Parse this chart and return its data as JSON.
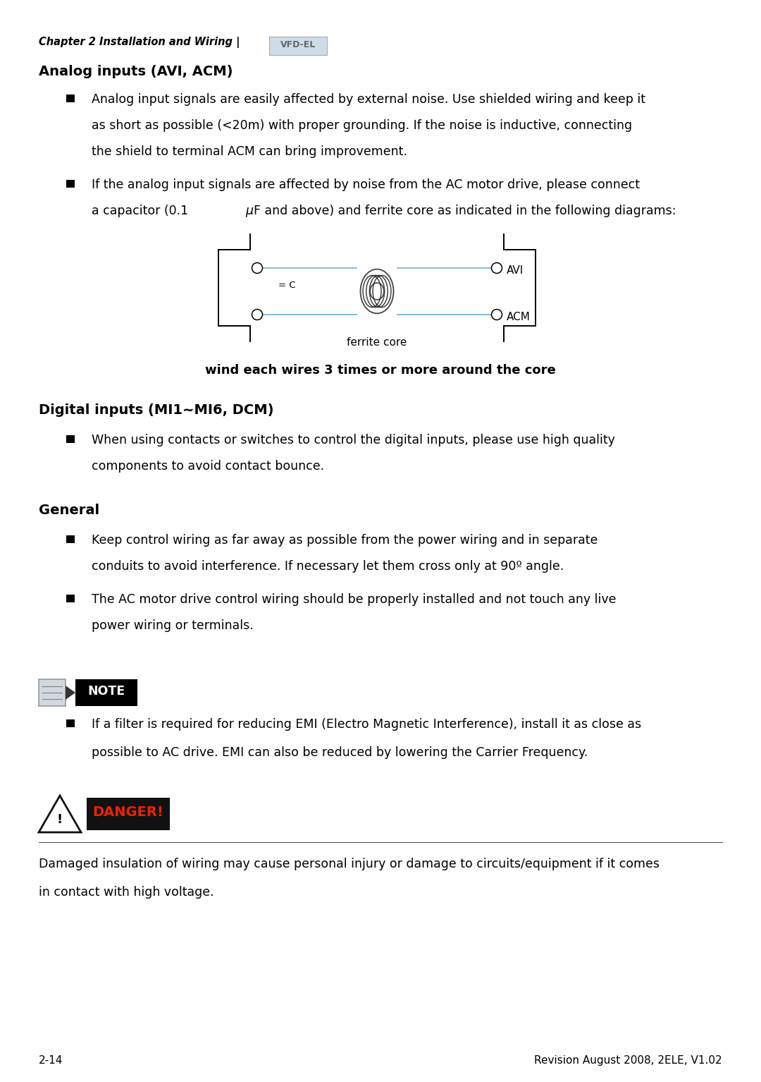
{
  "page_number": "2-14",
  "footer_right": "Revision August 2008, 2ELE, V1.02",
  "header_chapter": "Chapter 2 Installation and Wiring |",
  "header_logo": "VFD-EL",
  "section1_title": "Analog inputs (AVI, ACM)",
  "bullet1_line1": "Analog input signals are easily affected by external noise. Use shielded wiring and keep it",
  "bullet1_line2": "as short as possible (<20m) with proper grounding. If the noise is inductive, connecting",
  "bullet1_line3": "the shield to terminal ACM can bring improvement.",
  "bullet2_line1": "If the analog input signals are affected by noise from the AC motor drive, please connect",
  "bullet2_line2_a": "a capacitor (0.1 ",
  "bullet2_line2_mu": "μ",
  "bullet2_line2_b": "F and above) and ferrite core as indicated in the following diagrams:",
  "diagram_caption": "wind each wires 3 times or more around the core",
  "section2_title": "Digital inputs (MI1~MI6, DCM)",
  "bullet3_line1": "When using contacts or switches to control the digital inputs, please use high quality",
  "bullet3_line2": "components to avoid contact bounce.",
  "section3_title": "General",
  "bullet4_line1": "Keep control wiring as far away as possible from the power wiring and in separate",
  "bullet4_line2": "conduits to avoid interference. If necessary let them cross only at 90º angle.",
  "bullet5_line1": "The AC motor drive control wiring should be properly installed and not touch any live",
  "bullet5_line2": "power wiring or terminals.",
  "note_text_line1": "If a filter is required for reducing EMI (Electro Magnetic Interference), install it as close as",
  "note_text_line2": "possible to AC drive. EMI can also be reduced by lowering the Carrier Frequency.",
  "danger_text_line1": "Damaged insulation of wiring may cause personal injury or damage to circuits/equipment if it comes",
  "danger_text_line2": "in contact with high voltage.",
  "bg_color": "#ffffff",
  "text_color": "#000000",
  "body_font_size": 12.5,
  "heading_font_size": 14,
  "small_font_size": 11
}
